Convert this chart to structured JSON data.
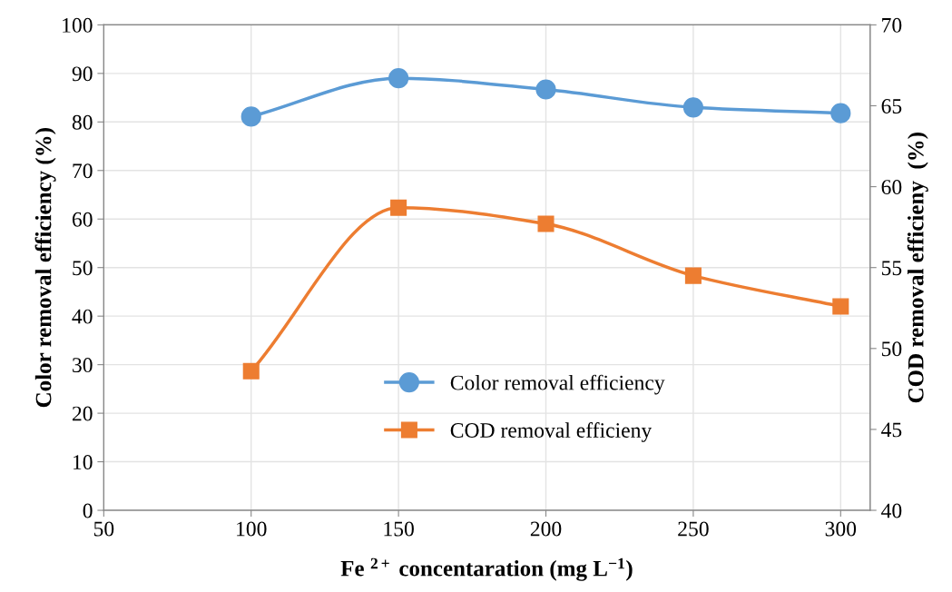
{
  "chart_data": {
    "type": "line",
    "xlabel": "Fe $^{2+}$ concentaration (mg L$^{−1}$)",
    "ylabel": "Color removal efficiency (%)",
    "y2label": "COD removal efficieny  (%)",
    "x": [
      100,
      150,
      200,
      250,
      300
    ],
    "series": [
      {
        "name": "Color removal efficiency",
        "color": "#5b9bd5",
        "marker": "circle",
        "values": [
          81.1,
          89.0,
          86.7,
          83.0,
          81.8
        ]
      },
      {
        "name": "COD removal efficieny",
        "color": "#ed7d31",
        "marker": "square",
        "axis": "y2",
        "values": [
          48.6,
          58.7,
          57.7,
          54.5,
          52.6
        ]
      }
    ],
    "xlim": [
      50,
      310
    ],
    "xticks": [
      50,
      100,
      150,
      200,
      250,
      300
    ],
    "ylim": [
      0,
      100
    ],
    "yticks": [
      0,
      10,
      20,
      30,
      40,
      50,
      60,
      70,
      80,
      90,
      100
    ],
    "y2lim": [
      40,
      70
    ],
    "y2ticks": [
      40,
      45,
      50,
      55,
      60,
      65,
      70
    ],
    "grid": true,
    "legend": "bottom center",
    "line_style": "solid"
  }
}
